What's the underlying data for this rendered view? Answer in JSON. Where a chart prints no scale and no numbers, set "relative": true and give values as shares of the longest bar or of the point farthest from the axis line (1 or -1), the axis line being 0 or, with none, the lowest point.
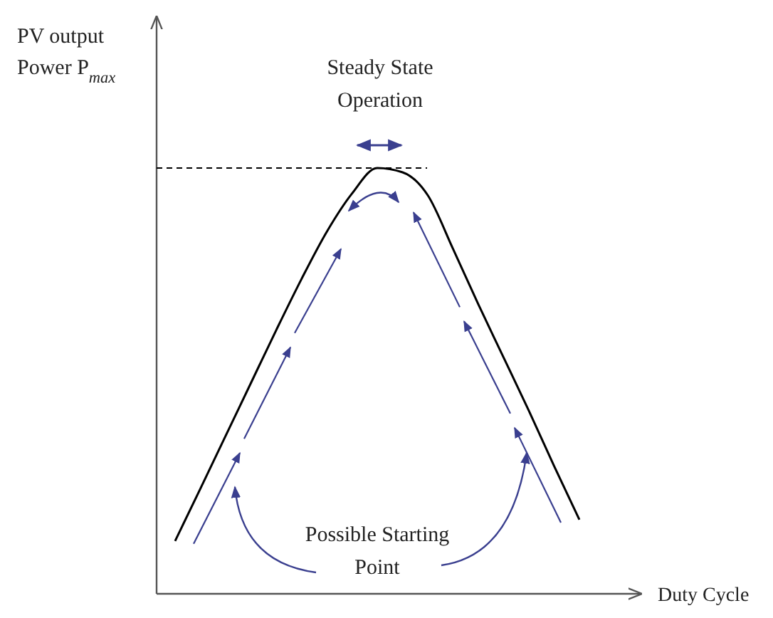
{
  "chart_data": {
    "type": "line",
    "relative": true,
    "xlabel": "Duty Cycle",
    "ylabel": "PV output\nPower P$_{max}$",
    "categories": [
      null,
      null,
      null,
      null,
      null,
      null,
      null,
      null,
      null,
      null,
      null,
      null,
      null,
      null,
      null,
      null,
      null
    ],
    "series": [
      {
        "color": "#000000",
        "values": [
          0.124,
          0.247,
          0.371,
          0.495,
          0.619,
          0.739,
          0.85,
          0.94,
          1.0,
          0.99,
          0.936,
          0.81,
          0.68,
          0.555,
          0.43,
          0.3,
          0.174
        ]
      }
    ],
    "ref_lines": [
      {
        "axis": "y",
        "value": 1.0,
        "line_style": "dashed",
        "color": "#000000"
      }
    ],
    "annotations": [
      "Steady State\nOperation",
      "Possible Starting\nPoint"
    ],
    "marker": "none",
    "line_style": "solid"
  }
}
